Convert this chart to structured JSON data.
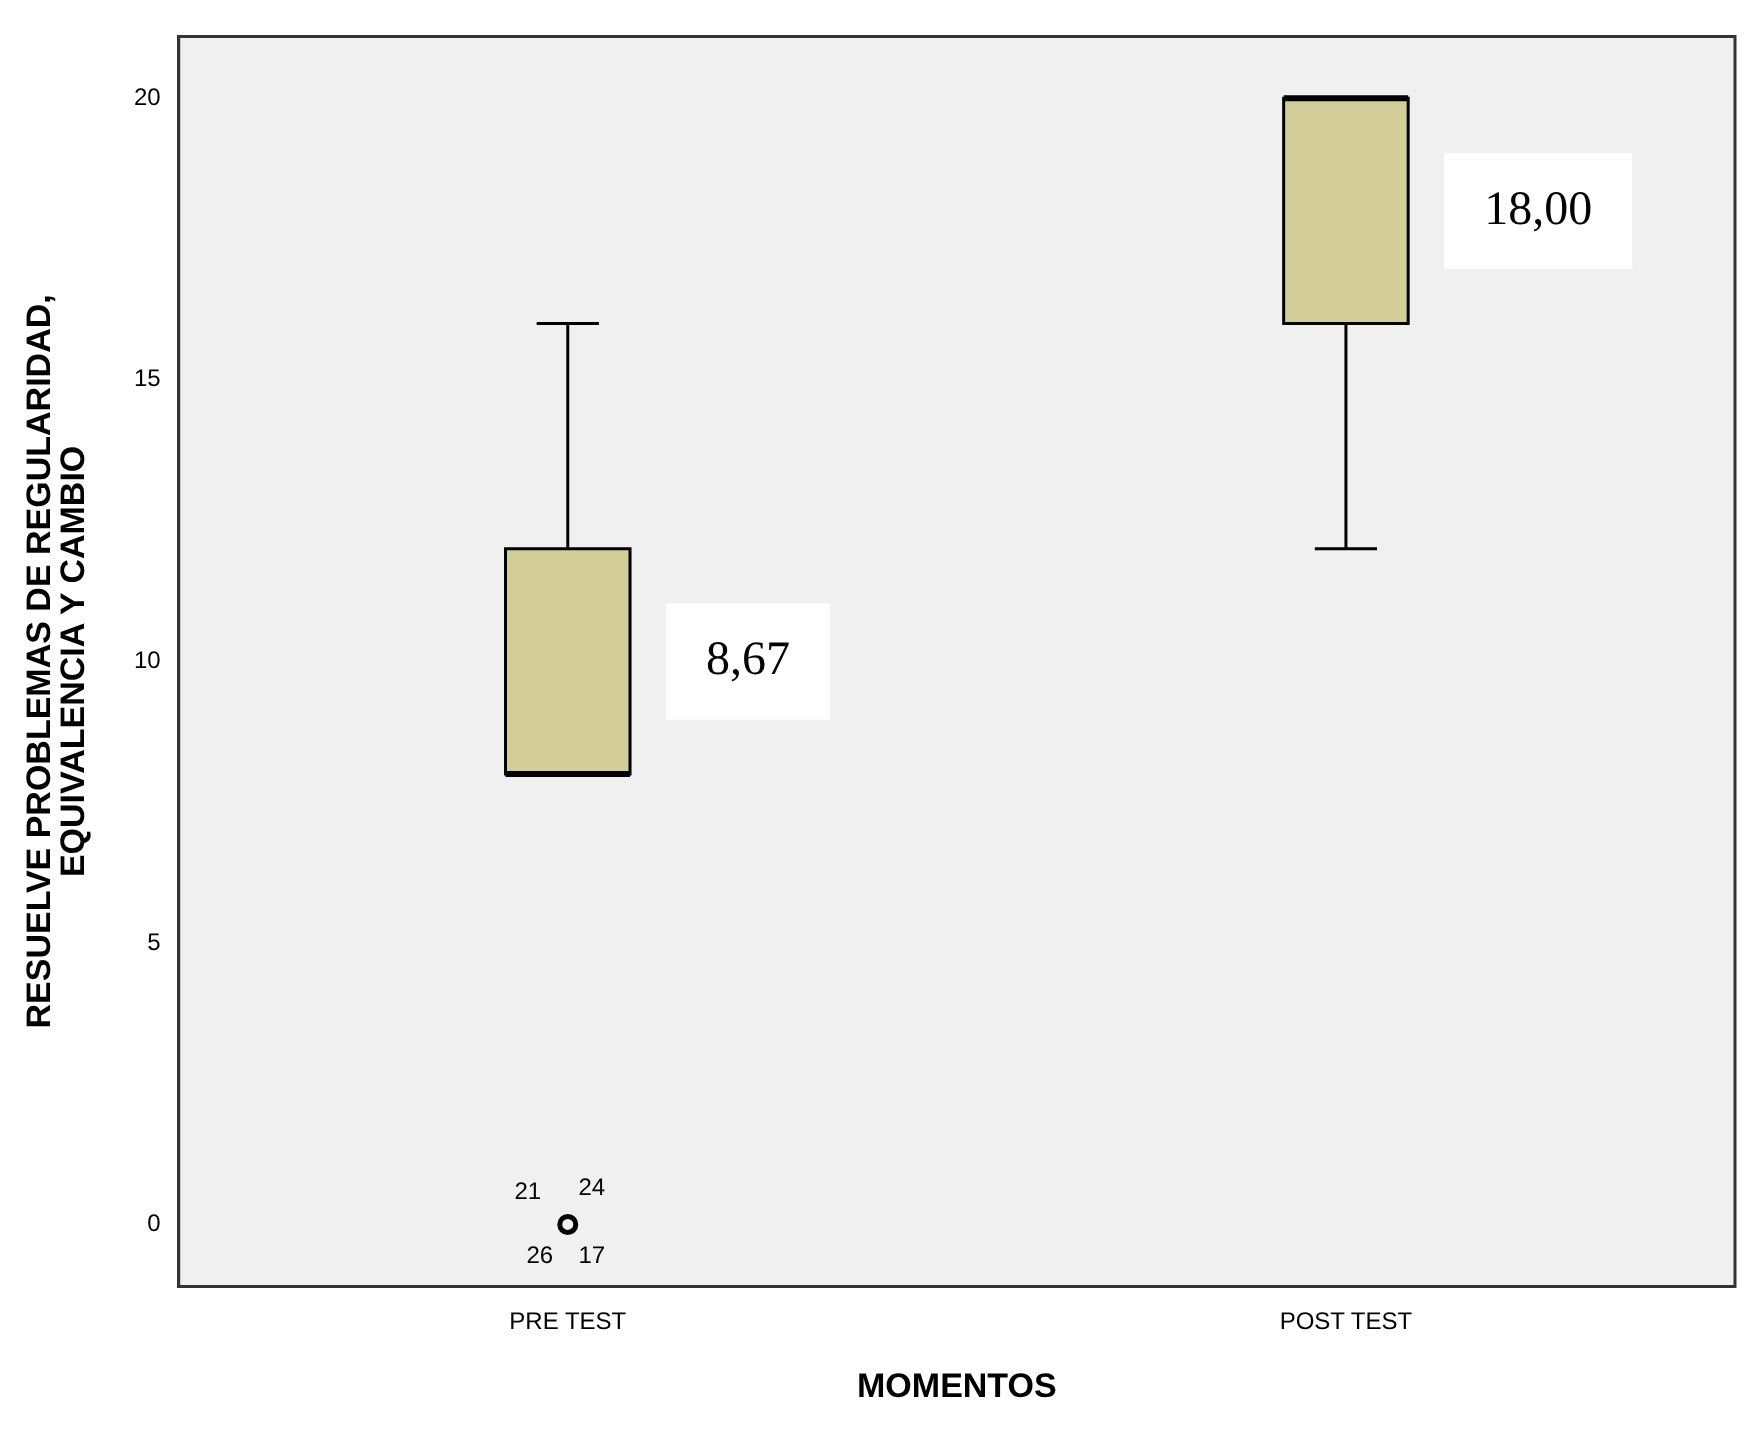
{
  "chart_data": {
    "type": "box",
    "xlabel": "MOMENTOS",
    "ylabel": "RESUELVE PROBLEMAS DE REGULARIDAD, EQUIVALENCIA Y CAMBIO",
    "categories": [
      "PRE TEST",
      "POST TEST"
    ],
    "series": [
      {
        "color": "#d3ce99",
        "boxes": [
          {
            "low": 8,
            "q1": 8,
            "median": 8,
            "q3": 12,
            "high": 16,
            "outliers": [
              0
            ]
          },
          {
            "low": 12,
            "q1": 16,
            "median": 20,
            "q3": 20,
            "high": 20
          }
        ]
      }
    ],
    "ylim": [
      -1.1,
      21.1
    ],
    "yticks": [
      0,
      5,
      10,
      15,
      20
    ],
    "grid": false,
    "legend": false,
    "marker": "circle",
    "annotations": [
      "8,67",
      "18,00",
      "21",
      "24",
      "26",
      "17"
    ]
  }
}
